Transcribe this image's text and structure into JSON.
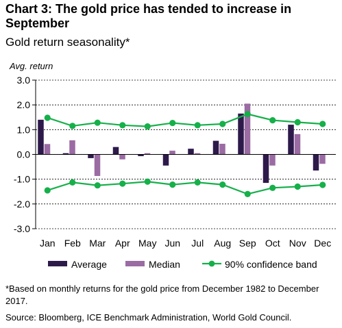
{
  "title": "Chart 3: The gold price has tended to increase in September",
  "subtitle": "Gold return seasonality*",
  "footnote": "*Based on monthly returns for the gold price from December 1982 to December 2017.",
  "source": "Source: Bloomberg, ICE Benchmark Administration, World Gold Council.",
  "chart_data": {
    "type": "bar",
    "ylabel": "Avg. return",
    "ylim": [
      -3.0,
      3.0
    ],
    "yticks": [
      "3.0",
      "2.0",
      "1.0",
      "0.0",
      "-1.0",
      "-2.0",
      "-3.0"
    ],
    "categories": [
      "Jan",
      "Feb",
      "Mar",
      "Apr",
      "May",
      "Jun",
      "Jul",
      "Aug",
      "Sep",
      "Oct",
      "Nov",
      "Dec"
    ],
    "series": [
      {
        "name": "Average",
        "kind": "bar",
        "color": "#2d1a4a",
        "values": [
          1.4,
          0.05,
          -0.15,
          0.3,
          -0.07,
          -0.45,
          0.23,
          0.55,
          1.65,
          -1.15,
          1.2,
          -0.65
        ]
      },
      {
        "name": "Median",
        "kind": "bar",
        "color": "#9b6ba3",
        "values": [
          0.42,
          0.57,
          -0.87,
          -0.2,
          0.05,
          0.15,
          0.05,
          0.43,
          2.05,
          -0.45,
          0.82,
          -0.38
        ]
      },
      {
        "name": "90% confidence band",
        "kind": "line",
        "color": "#16b04a",
        "upper": [
          1.48,
          1.15,
          1.28,
          1.18,
          1.13,
          1.27,
          1.18,
          1.23,
          1.63,
          1.38,
          1.3,
          1.23
        ],
        "lower": [
          -1.45,
          -1.13,
          -1.25,
          -1.18,
          -1.1,
          -1.22,
          -1.13,
          -1.22,
          -1.6,
          -1.35,
          -1.3,
          -1.23
        ]
      }
    ],
    "grid": "horizontal-dashed",
    "legend_position": "bottom"
  }
}
